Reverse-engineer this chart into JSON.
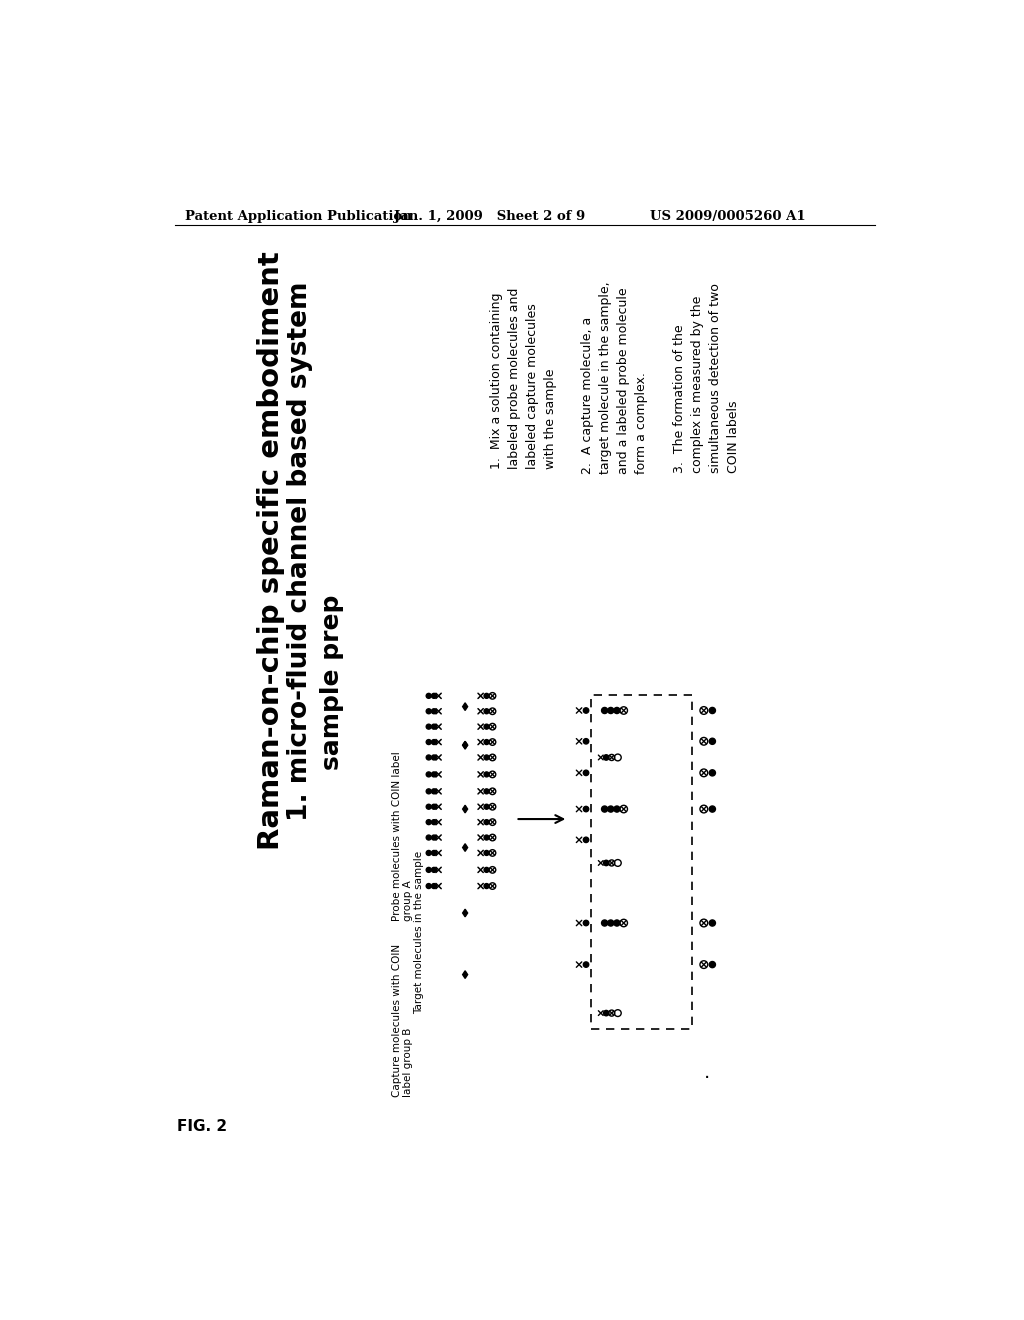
{
  "bg_color": "#ffffff",
  "header_left": "Patent Application Publication",
  "header_mid": "Jan. 1, 2009   Sheet 2 of 9",
  "header_right": "US 2009/0005260 A1",
  "fig_label": "FIG. 2",
  "title_line1": "Raman-on-chip specific embodiment",
  "title_line2": "1. micro-fluid channel based system",
  "title_line3": "sample prep",
  "step1": "1.  Mix a solution containing\nlabeled probe molecules and\nlabeled capture molecules\nwith the sample",
  "step2": "2.  A capture molecule, a\ntarget molecule in the sample,\nand a labeled probe molecule\nform a complex.",
  "step3": "3.  The formation of the\ncomplex is measured by the\nsimultaneous detection of two\nCOIN labels",
  "legend1": "Probe molecules with COIN label\ngroup A",
  "legend2": "Target molecules in the sample",
  "legend3": "Capture molecules with COIN\nlabel group B",
  "dot_period": "."
}
